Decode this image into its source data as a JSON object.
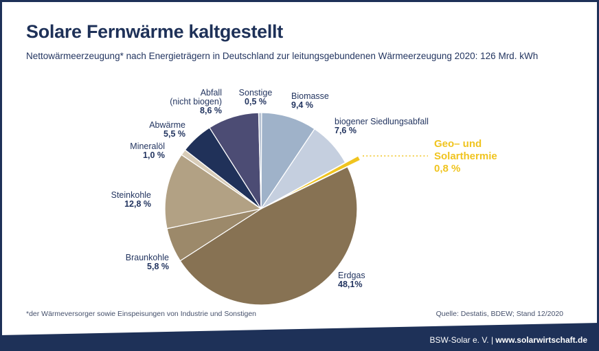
{
  "colors": {
    "navy": "#1e3158",
    "accent_yellow": "#f0c41f",
    "background": "#ffffff"
  },
  "header": {
    "title": "Solare Fernwärme kaltgestellt",
    "subtitle": "Nettowärmeerzeugung* nach Energieträgern in Deutschland zur leitungsgebundenen Wärmeerzeugung 2020: 126 Mrd. kWh"
  },
  "chart_data": {
    "type": "pie",
    "title": "Nettowärmeerzeugung nach Energieträgern in Deutschland 2020",
    "total": "126 Mrd. kWh",
    "direction": "clockwise",
    "start_angle": "12-o-clock",
    "slices": [
      {
        "id": "biomasse",
        "label": "Biomasse",
        "value": 9.4,
        "value_label": "9,4 %",
        "color": "#9fb2c9"
      },
      {
        "id": "biogener-siedlungsabfall",
        "label": "biogener Siedlungsabfall",
        "value": 7.6,
        "value_label": "7,6 %",
        "color": "#c5cfdf"
      },
      {
        "id": "geo-und-solarthermie",
        "label": "Geo– und Solarthermie",
        "value": 0.8,
        "value_label": "0,8 %",
        "color": "#f0c41f",
        "exploded": true
      },
      {
        "id": "erdgas",
        "label": "Erdgas",
        "value": 48.1,
        "value_label": "48,1%",
        "color": "#877253"
      },
      {
        "id": "braunkohle",
        "label": "Braunkohle",
        "value": 5.8,
        "value_label": "5,8 %",
        "color": "#9c896a"
      },
      {
        "id": "steinkohle",
        "label": "Steinkohle",
        "value": 12.8,
        "value_label": "12,8 %",
        "color": "#b2a184"
      },
      {
        "id": "mineraloel",
        "label": "Mineralöl",
        "value": 1.0,
        "value_label": "1,0 %",
        "color": "#d8ccb8"
      },
      {
        "id": "abwaerme",
        "label": "Abwärme",
        "value": 5.5,
        "value_label": "5,5 %",
        "color": "#203159"
      },
      {
        "id": "abfall-nicht-biogen",
        "label": "Abfall (nicht biogen)",
        "value": 8.6,
        "value_label": "8,6 %",
        "color": "#4c4c74"
      },
      {
        "id": "sonstige",
        "label": "Sonstige",
        "value": 0.5,
        "value_label": "0,5 %",
        "color": "#b5c1d2"
      }
    ]
  },
  "callouts": {
    "abfall": {
      "lines": [
        "Abfall",
        "(nicht biogen)"
      ],
      "value": "8,6 %"
    },
    "sonstige": {
      "lines": [
        "Sonstige"
      ],
      "value": "0,5 %"
    },
    "biomasse": {
      "lines": [
        "Biomasse"
      ],
      "value": "9,4 %"
    },
    "siedlungsabfall": {
      "lines": [
        "biogener Siedlungsabfall"
      ],
      "value": "7,6 %"
    },
    "geo": {
      "lines": [
        "Geo– und",
        "Solarthermie"
      ],
      "value": "0,8 %"
    },
    "abwaerme": {
      "lines": [
        "Abwärme"
      ],
      "value": "5,5 %"
    },
    "mineraloel": {
      "lines": [
        "Mineralöl"
      ],
      "value": "1,0 %"
    },
    "steinkohle": {
      "lines": [
        "Steinkohle"
      ],
      "value": "12,8 %"
    },
    "braunkohle": {
      "lines": [
        "Braunkohle"
      ],
      "value": "5,8 %"
    },
    "erdgas": {
      "lines": [
        "Erdgas"
      ],
      "value": "48,1%"
    }
  },
  "footer": {
    "footnote": "*der Wärmeversorger sowie Einspeisungen von Industrie und Sonstigen",
    "source": "Quelle: Destatis, BDEW; Stand 12/2020"
  },
  "bottom_bar": {
    "org": "BSW-Solar e. V.",
    "separator": "|",
    "website": "www.solarwirtschaft.de"
  }
}
